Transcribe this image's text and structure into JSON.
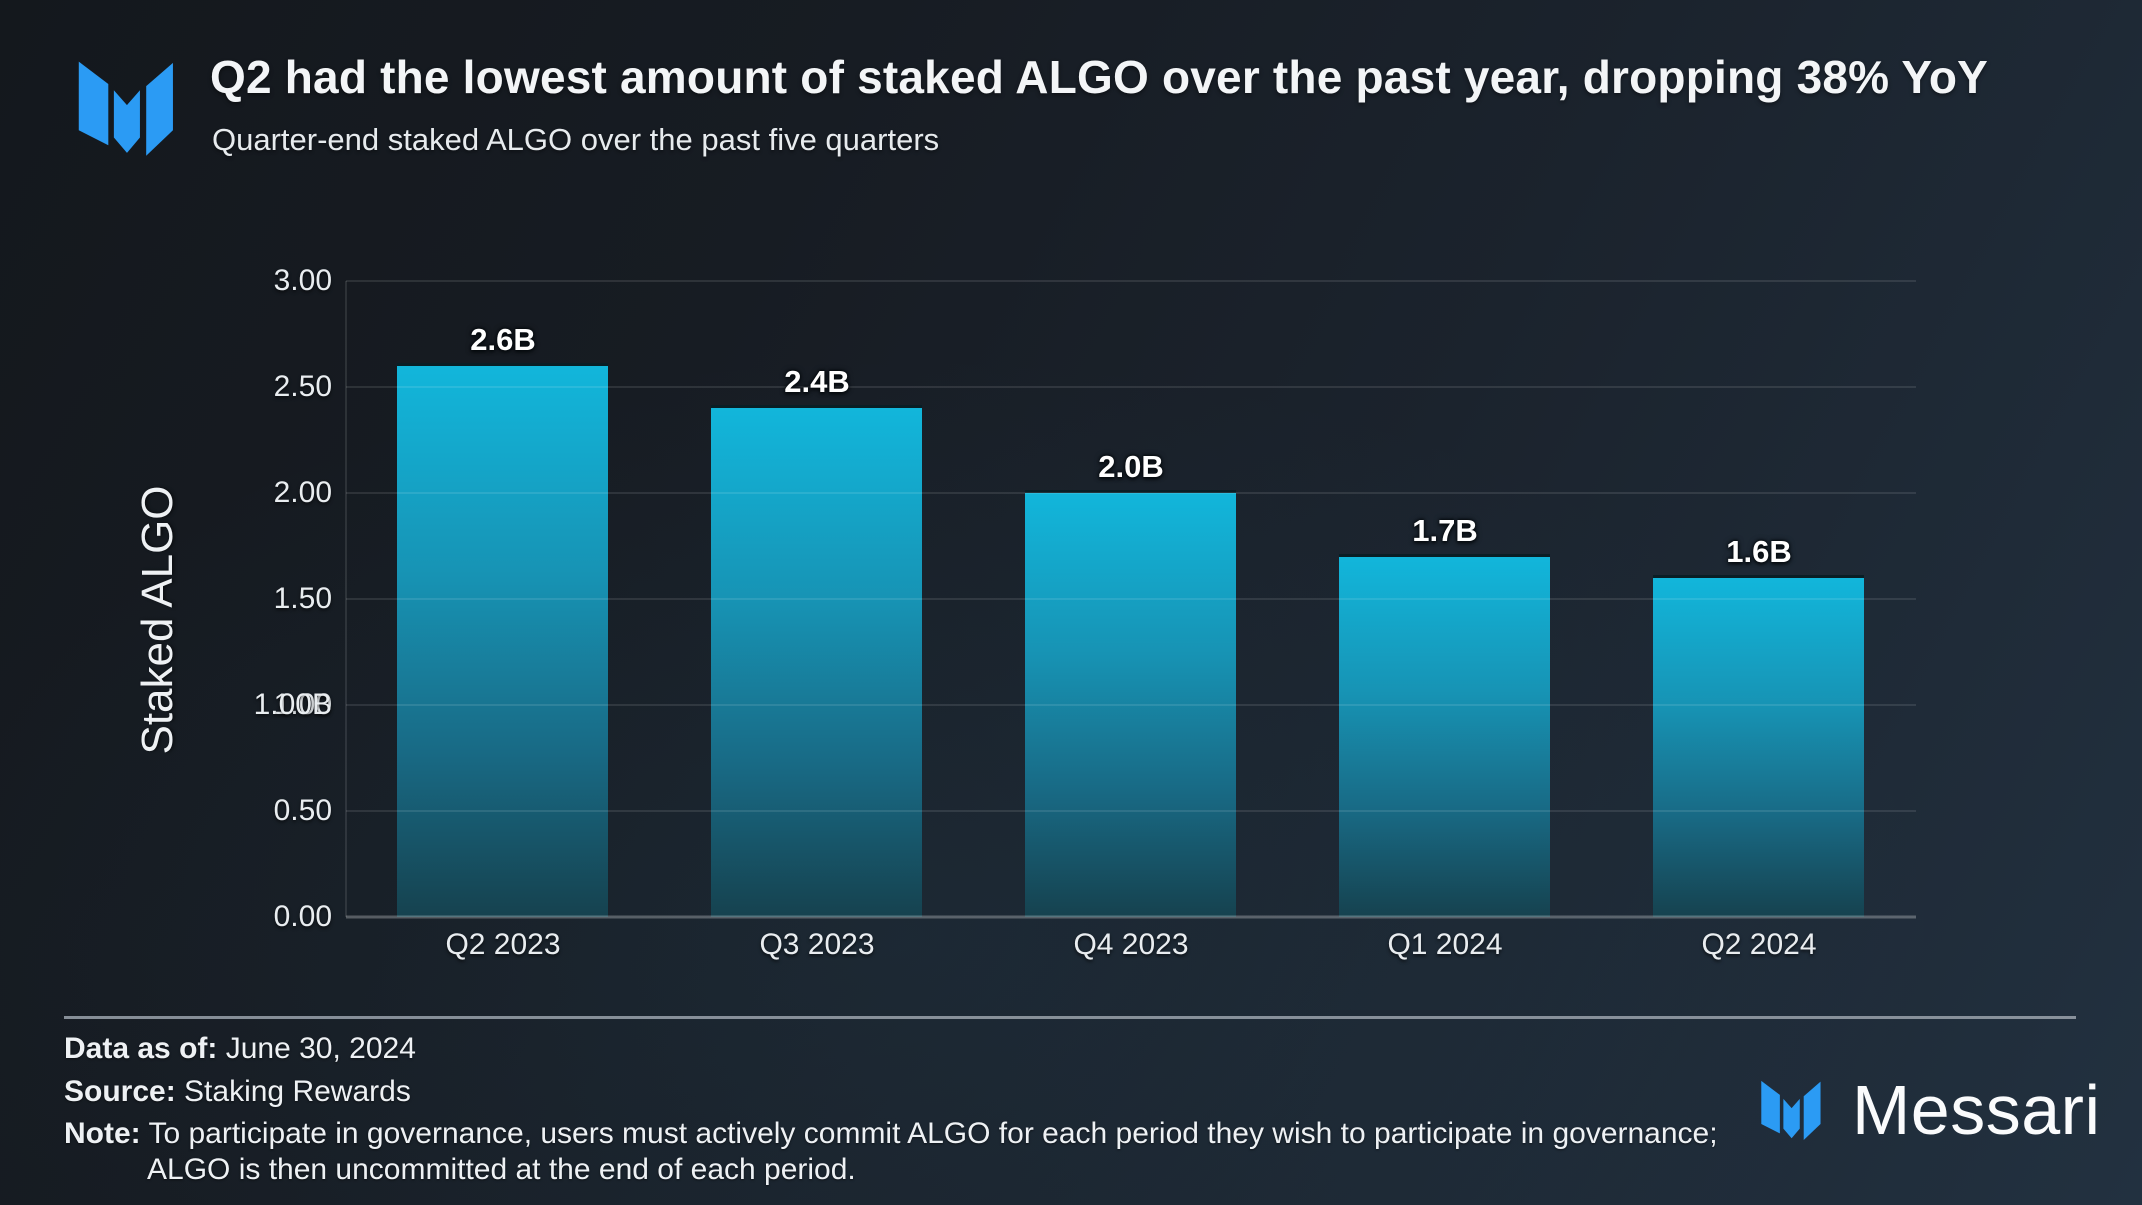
{
  "header": {
    "title": "Q2 had the lowest amount of staked ALGO over the past year, dropping 38% YoY",
    "subtitle": "Quarter-end staked ALGO over the past five quarters"
  },
  "chart_data": {
    "type": "bar",
    "title": "Q2 had the lowest amount of staked ALGO over the past year, dropping 38% YoY",
    "subtitle": "Quarter-end staked ALGO over the past five quarters",
    "categories": [
      "Q2 2023",
      "Q3 2023",
      "Q4 2023",
      "Q1 2024",
      "Q2 2024"
    ],
    "values": [
      2.6,
      2.4,
      2.0,
      1.7,
      1.6
    ],
    "bar_labels": [
      "2.6B",
      "2.4B",
      "2.0B",
      "1.7B",
      "1.6B"
    ],
    "xlabel": "",
    "ylabel": "Staked ALGO",
    "ylim": [
      0,
      3
    ],
    "ytick_values": [
      3.0,
      2.5,
      2.0,
      1.5,
      1.0,
      0.5,
      0.0
    ],
    "yticks": [
      "3.00",
      "2.50",
      "2.00",
      "1.50",
      "1.00",
      "0.50",
      "0.00"
    ],
    "ytick_overlap": {
      "label": "1.00B",
      "tick_index": 4
    },
    "grid": true,
    "legend_position": "none",
    "bar_color_top": "#12b6db",
    "bar_color_bottom": "#16424f"
  },
  "footer": {
    "data_as_of_label": "Data as of:",
    "data_as_of": "June 30, 2024",
    "source_label": "Source:",
    "source": "Staking Rewards",
    "note_label": "Note:",
    "note_line1": "To participate in governance, users must actively commit ALGO for each period they wish to participate in governance;",
    "note_line2": "ALGO is then uncommitted at the end of each period."
  },
  "branding": {
    "wordmark": "Messari",
    "logo_icon": "messari-m-icon",
    "logo_color": "#2b9bf4"
  },
  "colors": {
    "background_dark": "#14181d",
    "background_light": "#223140",
    "text": "#eef1f4",
    "accent_blue": "#2b9bf4",
    "gridline": "rgba(255,255,255,0.10)"
  }
}
